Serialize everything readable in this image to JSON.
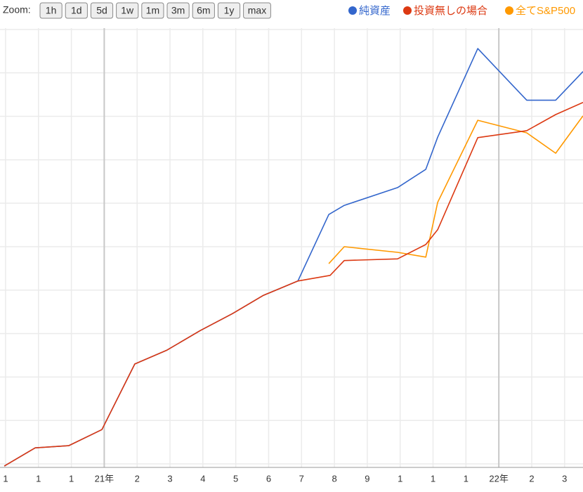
{
  "chart_data": {
    "type": "line",
    "zoom_label": "Zoom:",
    "zoom_buttons": [
      "1h",
      "1d",
      "5d",
      "1w",
      "1m",
      "3m",
      "6m",
      "1y",
      "max"
    ],
    "xlim": [
      -0.17,
      17.56
    ],
    "xticks": [
      {
        "value": 0,
        "label": "1"
      },
      {
        "value": 1,
        "label": "1"
      },
      {
        "value": 2,
        "label": "1"
      },
      {
        "value": 3,
        "label": "21年"
      },
      {
        "value": 4,
        "label": "2"
      },
      {
        "value": 5,
        "label": "3"
      },
      {
        "value": 6,
        "label": "4"
      },
      {
        "value": 7,
        "label": "5"
      },
      {
        "value": 8,
        "label": "6"
      },
      {
        "value": 9,
        "label": "7"
      },
      {
        "value": 10,
        "label": "8"
      },
      {
        "value": 11,
        "label": "9"
      },
      {
        "value": 12,
        "label": "1"
      },
      {
        "value": 13,
        "label": "1"
      },
      {
        "value": 14,
        "label": "1"
      },
      {
        "value": 15,
        "label": "22年"
      },
      {
        "value": 16,
        "label": "2"
      },
      {
        "value": 17,
        "label": "3"
      }
    ],
    "major_xticks": [
      3,
      15
    ],
    "ylim": [
      -0.08,
      10.03
    ],
    "yticks": [
      0,
      1,
      2,
      3,
      4,
      5,
      6,
      7,
      8,
      9,
      10
    ],
    "grid": true,
    "series": [
      {
        "name": "純資産",
        "color": "#3366cc",
        "x": [
          -0.04,
          0.9,
          1.92,
          2.93,
          3.93,
          4.91,
          5.92,
          6.9,
          7.84,
          8.89,
          9.83,
          10.3,
          11.92,
          12.78,
          13.14,
          14.36,
          15.85,
          16.73,
          17.56
        ],
        "values": [
          -0.05,
          0.37,
          0.42,
          0.79,
          2.3,
          2.62,
          3.07,
          3.46,
          3.88,
          4.21,
          5.74,
          5.95,
          6.36,
          6.78,
          7.52,
          9.56,
          8.37,
          8.37,
          9.03
        ]
      },
      {
        "name": "投資無しの場合",
        "color": "#dc3912",
        "x": [
          -0.04,
          0.9,
          1.92,
          2.93,
          3.93,
          4.91,
          5.92,
          6.9,
          7.84,
          8.89,
          9.87,
          10.3,
          11.92,
          12.78,
          13.14,
          14.36,
          15.85,
          16.73,
          17.56
        ],
        "values": [
          -0.05,
          0.37,
          0.42,
          0.79,
          2.3,
          2.62,
          3.07,
          3.46,
          3.88,
          4.21,
          4.34,
          4.68,
          4.72,
          5.05,
          5.39,
          7.51,
          7.67,
          8.04,
          8.32
        ]
      },
      {
        "name": "全てS&P500",
        "color": "#ff9900",
        "x": [
          9.83,
          10.3,
          11.92,
          12.78,
          13.14,
          14.36,
          15.85,
          16.73,
          17.56
        ],
        "values": [
          4.61,
          5.0,
          4.87,
          4.76,
          6.02,
          7.91,
          7.62,
          7.15,
          8.01
        ]
      }
    ],
    "draw_order": [
      0,
      2,
      1
    ]
  }
}
